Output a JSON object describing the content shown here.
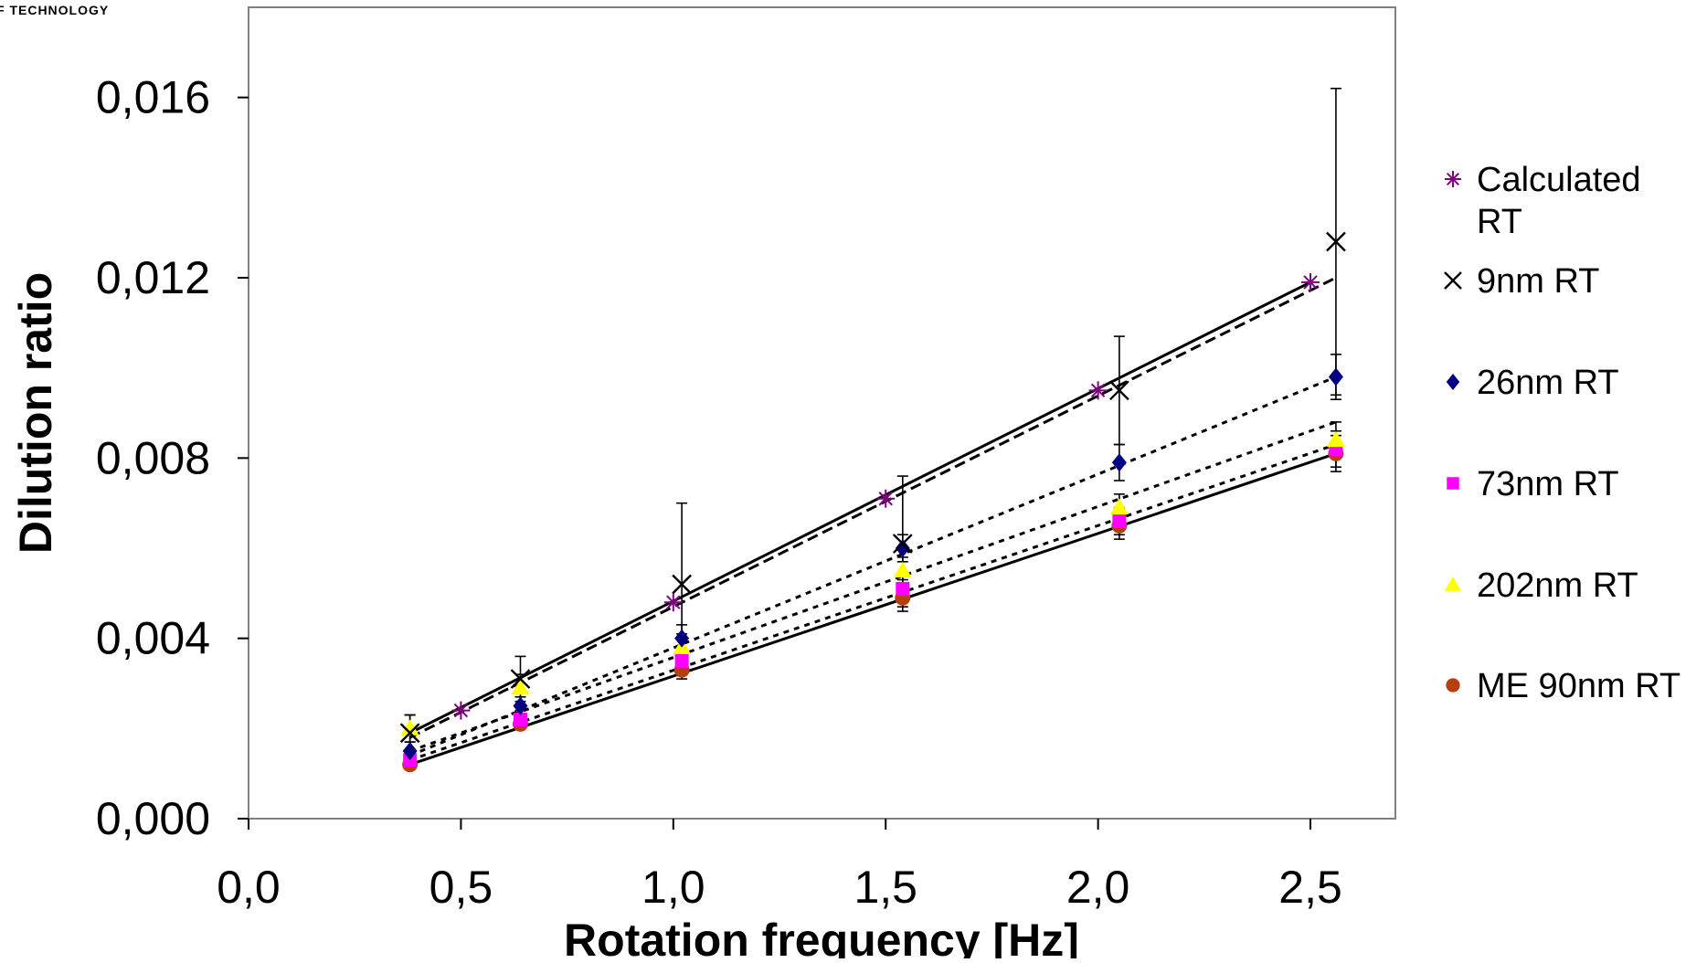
{
  "header": {
    "logo_text": "F TECHNOLOGY"
  },
  "chart_data": {
    "type": "scatter",
    "title": "",
    "xlabel": "Rotation frequency [Hz]",
    "ylabel": "Dilution ratio",
    "xlim": [
      0.0,
      2.7
    ],
    "ylim": [
      0.0,
      0.018
    ],
    "x_ticks": [
      0.0,
      0.5,
      1.0,
      1.5,
      2.0,
      2.5
    ],
    "x_tick_labels": [
      "0,0",
      "0,5",
      "1,0",
      "1,5",
      "2,0",
      "2,5"
    ],
    "y_ticks": [
      0.0,
      0.004,
      0.008,
      0.012,
      0.016
    ],
    "y_tick_labels": [
      "0,000",
      "0,004",
      "0,008",
      "0,012",
      "0,016"
    ],
    "grid": false,
    "legend_position": "right",
    "series": [
      {
        "name": "Calculated RT",
        "legend_lines": [
          "Calculated",
          "RT"
        ],
        "marker": "asterisk",
        "color": "#800080",
        "x": [
          0.5,
          1.0,
          1.5,
          2.0,
          2.5
        ],
        "y": [
          0.0024,
          0.0048,
          0.0071,
          0.0095,
          0.0119
        ],
        "trendline": {
          "style": "solid",
          "x": [
            0.38,
            2.5
          ],
          "y": [
            0.0019,
            0.0119
          ]
        }
      },
      {
        "name": "9nm RT",
        "legend_lines": [
          "9nm RT"
        ],
        "marker": "x",
        "color": "#000000",
        "x": [
          0.38,
          0.64,
          1.02,
          1.54,
          2.05,
          2.56
        ],
        "y": [
          0.0019,
          0.0031,
          0.0052,
          0.0061,
          0.0095,
          0.0128
        ],
        "errors": [
          0.0004,
          0.0005,
          0.0018,
          0.0015,
          0.0012,
          0.0034
        ],
        "trendline": {
          "style": "dashed",
          "x": [
            0.38,
            2.56
          ],
          "y": [
            0.0018,
            0.012
          ]
        }
      },
      {
        "name": "26nm RT",
        "legend_lines": [
          "26nm RT"
        ],
        "marker": "diamond",
        "color": "#000080",
        "x": [
          0.38,
          0.64,
          1.02,
          1.54,
          2.05,
          2.56
        ],
        "y": [
          0.0015,
          0.0025,
          0.004,
          0.006,
          0.0079,
          0.0098
        ],
        "errors": [
          0.0002,
          0.0002,
          0.0003,
          0.0003,
          0.0004,
          0.0005
        ],
        "trendline": {
          "style": "dotted",
          "x": [
            0.38,
            2.56
          ],
          "y": [
            0.0014,
            0.0098
          ]
        }
      },
      {
        "name": "73nm RT",
        "legend_lines": [
          "73nm RT"
        ],
        "marker": "square",
        "color": "#ff00ff",
        "x": [
          0.38,
          0.64,
          1.02,
          1.54,
          2.05,
          2.56
        ],
        "y": [
          0.0013,
          0.0022,
          0.0035,
          0.0051,
          0.0066,
          0.0082
        ],
        "errors": [
          0.0001,
          0.0002,
          0.0002,
          0.0002,
          0.0003,
          0.0004
        ],
        "trendline": {
          "style": "dotted",
          "x": [
            0.38,
            2.56
          ],
          "y": [
            0.0013,
            0.0083
          ]
        }
      },
      {
        "name": "202nm RT",
        "legend_lines": [
          "202nm RT"
        ],
        "marker": "triangle",
        "color": "#ffff00",
        "x": [
          0.38,
          0.64,
          1.02,
          1.54,
          2.05,
          2.56
        ],
        "y": [
          0.002,
          0.0029,
          0.0038,
          0.0055,
          0.0069,
          0.0084
        ],
        "errors": [
          0.0003,
          0.0003,
          0.0003,
          0.0003,
          0.0003,
          0.0004
        ],
        "trendline": {
          "style": "dotted",
          "x": [
            0.38,
            2.56
          ],
          "y": [
            0.0015,
            0.0088
          ]
        }
      },
      {
        "name": "ME 90nm RT",
        "legend_lines": [
          "ME 90nm RT"
        ],
        "marker": "circle",
        "color": "#b5400f",
        "x": [
          0.38,
          0.64,
          1.02,
          1.54,
          2.05,
          2.56
        ],
        "y": [
          0.0012,
          0.0021,
          0.0033,
          0.0049,
          0.0065,
          0.0081
        ],
        "errors": [
          0.0001,
          0.0001,
          0.0002,
          0.0002,
          0.0003,
          0.0004
        ],
        "trendline": {
          "style": "solid",
          "x": [
            0.38,
            2.56
          ],
          "y": [
            0.0012,
            0.0081
          ]
        }
      }
    ]
  }
}
